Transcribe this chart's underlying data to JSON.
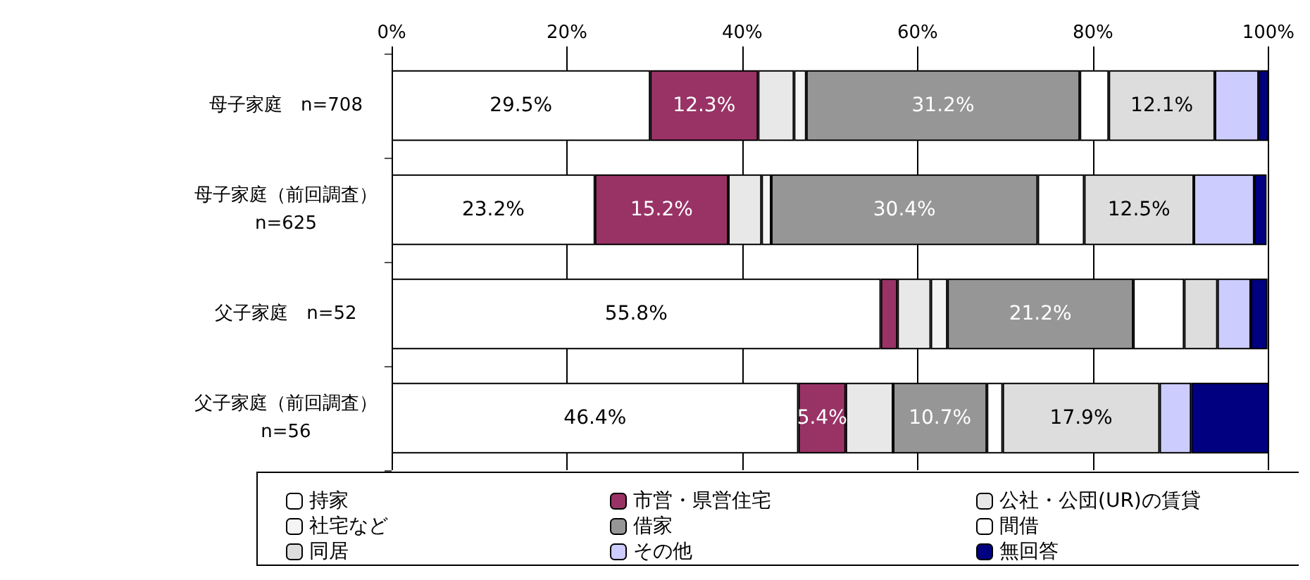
{
  "chart_data": {
    "type": "bar",
    "orientation": "horizontal",
    "stacked": true,
    "categories": [
      "母子家庭　n=708",
      "母子家庭（前回調査）\nn=625",
      "父子家庭　n=52",
      "父子家庭（前回調査）\nn=56"
    ],
    "series": [
      {
        "name": "持家",
        "color": "#ffffff",
        "values": [
          29.5,
          23.2,
          55.8,
          46.4
        ],
        "value_labels": [
          "29.5%",
          "23.2%",
          "55.8%",
          "46.4%"
        ]
      },
      {
        "name": "市営・県営住宅",
        "color": "#993366",
        "values": [
          12.3,
          15.2,
          1.9,
          5.4
        ],
        "value_labels": [
          "12.3%",
          "15.2%",
          null,
          "5.4%"
        ]
      },
      {
        "name": "公社・公団(UR)の賃貸",
        "color": "#e8e8e8",
        "values": [
          4.1,
          3.8,
          3.8,
          5.4
        ]
      },
      {
        "name": "社宅など",
        "color": "#f4f4f4",
        "values": [
          1.4,
          1.1,
          1.9,
          0
        ]
      },
      {
        "name": "借家",
        "color": "#969696",
        "values": [
          31.2,
          30.4,
          21.2,
          10.7
        ],
        "value_labels": [
          "31.2%",
          "30.4%",
          "21.2%",
          "10.7%"
        ]
      },
      {
        "name": "間借",
        "color": "#ffffff",
        "values": [
          3.3,
          5.3,
          5.8,
          1.8
        ]
      },
      {
        "name": "同居",
        "color": "#dddddd",
        "values": [
          12.1,
          12.5,
          3.8,
          17.9
        ],
        "value_labels": [
          "12.1%",
          "12.5%",
          null,
          "17.9%"
        ]
      },
      {
        "name": "その他",
        "color": "#ccccff",
        "values": [
          5.0,
          6.9,
          3.8,
          3.6
        ]
      },
      {
        "name": "無回答",
        "color": "#000080",
        "values": [
          1.1,
          1.4,
          1.9,
          8.9
        ]
      }
    ],
    "xlim": [
      0,
      100
    ],
    "xticks": [
      {
        "value": 0,
        "label": "0%"
      },
      {
        "value": 20,
        "label": "20%"
      },
      {
        "value": 40,
        "label": "40%"
      },
      {
        "value": 60,
        "label": "60%"
      },
      {
        "value": 80,
        "label": "80%"
      },
      {
        "value": 100,
        "label": "100%"
      }
    ],
    "grid": "x",
    "legend": "bottom"
  }
}
